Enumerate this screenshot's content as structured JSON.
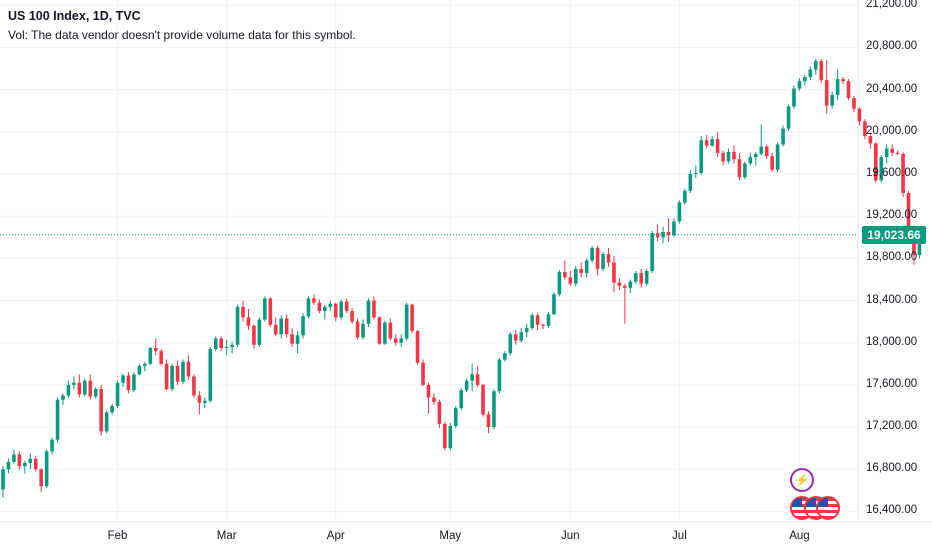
{
  "header": {
    "title": "US 100 Index, 1D, TVC",
    "volume_note": "Vol: The data vendor doesn't provide volume data for this symbol."
  },
  "colors": {
    "up": "#089981",
    "down": "#f23645",
    "grid": "#f0f3fa",
    "last_price": "#089981"
  },
  "icons": [
    "lightning-icon",
    "us-flag-icon"
  ],
  "chart_data": {
    "type": "candlestick",
    "symbol": "US 100 Index",
    "interval": "1D",
    "source": "TVC",
    "last_price": "19,023.66",
    "last_price_value": 19023.66,
    "ylim": [
      16300,
      21250
    ],
    "y_ticks": [
      {
        "value": 16400,
        "label": "16,400.00"
      },
      {
        "value": 16800,
        "label": "16,800.00"
      },
      {
        "value": 17200,
        "label": "17,200.00"
      },
      {
        "value": 17600,
        "label": "17,600.00"
      },
      {
        "value": 18000,
        "label": "18,000.00"
      },
      {
        "value": 18400,
        "label": "18,400.00"
      },
      {
        "value": 18800,
        "label": "18,800.00"
      },
      {
        "value": 19200,
        "label": "19,200.00"
      },
      {
        "value": 19600,
        "label": "19,600.00"
      },
      {
        "value": 20000,
        "label": "20,000.00"
      },
      {
        "value": 20400,
        "label": "20,400.00"
      },
      {
        "value": 20800,
        "label": "20,800.00"
      },
      {
        "value": 21200,
        "label": "21,200.00"
      }
    ],
    "x_ticks": [
      {
        "label": "Feb",
        "index": 21
      },
      {
        "label": "Mar",
        "index": 41
      },
      {
        "label": "Apr",
        "index": 61
      },
      {
        "label": "May",
        "index": 82
      },
      {
        "label": "Jun",
        "index": 104
      },
      {
        "label": "Jul",
        "index": 124
      },
      {
        "label": "Aug",
        "index": 146
      }
    ],
    "grid": true,
    "candles": [
      [
        16610,
        16830,
        16530,
        16800
      ],
      [
        16800,
        16900,
        16760,
        16870
      ],
      [
        16870,
        16990,
        16850,
        16940
      ],
      [
        16940,
        16970,
        16800,
        16830
      ],
      [
        16830,
        16880,
        16760,
        16860
      ],
      [
        16860,
        16950,
        16800,
        16900
      ],
      [
        16900,
        16930,
        16780,
        16800
      ],
      [
        16800,
        16810,
        16580,
        16640
      ],
      [
        16640,
        16990,
        16620,
        16970
      ],
      [
        16970,
        17100,
        16940,
        17080
      ],
      [
        17080,
        17480,
        17050,
        17460
      ],
      [
        17460,
        17520,
        17410,
        17500
      ],
      [
        17500,
        17640,
        17480,
        17600
      ],
      [
        17600,
        17680,
        17560,
        17620
      ],
      [
        17620,
        17700,
        17480,
        17510
      ],
      [
        17510,
        17660,
        17490,
        17640
      ],
      [
        17640,
        17700,
        17460,
        17490
      ],
      [
        17490,
        17580,
        17470,
        17560
      ],
      [
        17560,
        17600,
        17120,
        17160
      ],
      [
        17160,
        17360,
        17140,
        17340
      ],
      [
        17340,
        17420,
        17320,
        17400
      ],
      [
        17400,
        17640,
        17380,
        17620
      ],
      [
        17620,
        17710,
        17580,
        17690
      ],
      [
        17690,
        17720,
        17520,
        17550
      ],
      [
        17550,
        17720,
        17530,
        17700
      ],
      [
        17700,
        17800,
        17690,
        17780
      ],
      [
        17780,
        17820,
        17730,
        17800
      ],
      [
        17800,
        17960,
        17790,
        17950
      ],
      [
        17950,
        18040,
        17880,
        17920
      ],
      [
        17920,
        17940,
        17780,
        17800
      ],
      [
        17800,
        17840,
        17550,
        17560
      ],
      [
        17560,
        17800,
        17540,
        17780
      ],
      [
        17780,
        17830,
        17600,
        17630
      ],
      [
        17630,
        17840,
        17610,
        17820
      ],
      [
        17820,
        17880,
        17650,
        17680
      ],
      [
        17680,
        17700,
        17480,
        17500
      ],
      [
        17500,
        17540,
        17320,
        17430
      ],
      [
        17430,
        17480,
        17380,
        17450
      ],
      [
        17450,
        17960,
        17430,
        17940
      ],
      [
        17940,
        18060,
        17920,
        18040
      ],
      [
        18040,
        18060,
        17920,
        17950
      ],
      [
        17950,
        18030,
        17880,
        17960
      ],
      [
        17960,
        18010,
        17900,
        17980
      ],
      [
        17980,
        18360,
        17960,
        18340
      ],
      [
        18340,
        18400,
        18200,
        18240
      ],
      [
        18240,
        18320,
        18120,
        18160
      ],
      [
        18160,
        18170,
        17940,
        17980
      ],
      [
        17980,
        18240,
        17960,
        18220
      ],
      [
        18220,
        18440,
        18200,
        18420
      ],
      [
        18420,
        18430,
        18150,
        18170
      ],
      [
        18170,
        18240,
        18060,
        18080
      ],
      [
        18080,
        18260,
        18040,
        18230
      ],
      [
        18230,
        18270,
        18050,
        18080
      ],
      [
        18080,
        18140,
        17960,
        17990
      ],
      [
        17990,
        18110,
        17900,
        18070
      ],
      [
        18070,
        18280,
        18040,
        18250
      ],
      [
        18250,
        18440,
        18230,
        18420
      ],
      [
        18420,
        18460,
        18360,
        18380
      ],
      [
        18380,
        18410,
        18280,
        18300
      ],
      [
        18300,
        18360,
        18220,
        18340
      ],
      [
        18340,
        18400,
        18300,
        18370
      ],
      [
        18370,
        18380,
        18200,
        18240
      ],
      [
        18240,
        18410,
        18220,
        18390
      ],
      [
        18390,
        18420,
        18280,
        18300
      ],
      [
        18300,
        18330,
        18180,
        18200
      ],
      [
        18200,
        18230,
        18030,
        18050
      ],
      [
        18050,
        18220,
        18030,
        18180
      ],
      [
        18180,
        18420,
        18150,
        18400
      ],
      [
        18400,
        18440,
        18220,
        18240
      ],
      [
        18240,
        18250,
        17980,
        17990
      ],
      [
        17990,
        18210,
        17980,
        18190
      ],
      [
        18190,
        18230,
        18020,
        18040
      ],
      [
        18040,
        18080,
        17970,
        18000
      ],
      [
        18000,
        18080,
        17960,
        18040
      ],
      [
        18040,
        18380,
        18020,
        18360
      ],
      [
        18360,
        18370,
        18090,
        18110
      ],
      [
        18110,
        18120,
        17790,
        17810
      ],
      [
        17810,
        17840,
        17590,
        17600
      ],
      [
        17600,
        17620,
        17330,
        17480
      ],
      [
        17480,
        17520,
        17410,
        17440
      ],
      [
        17440,
        17460,
        17190,
        17230
      ],
      [
        17230,
        17250,
        16980,
        17000
      ],
      [
        17000,
        17240,
        16980,
        17210
      ],
      [
        17210,
        17400,
        17190,
        17380
      ],
      [
        17380,
        17570,
        17360,
        17550
      ],
      [
        17550,
        17660,
        17530,
        17640
      ],
      [
        17640,
        17800,
        17540,
        17700
      ],
      [
        17700,
        17780,
        17580,
        17600
      ],
      [
        17600,
        17610,
        17300,
        17320
      ],
      [
        17320,
        17350,
        17140,
        17200
      ],
      [
        17200,
        17560,
        17180,
        17540
      ],
      [
        17540,
        17860,
        17520,
        17840
      ],
      [
        17840,
        17920,
        17820,
        17900
      ],
      [
        17900,
        18100,
        17880,
        18080
      ],
      [
        18080,
        18120,
        17980,
        18020
      ],
      [
        18020,
        18140,
        18000,
        18100
      ],
      [
        18100,
        18180,
        18050,
        18140
      ],
      [
        18140,
        18280,
        18120,
        18260
      ],
      [
        18260,
        18280,
        18120,
        18170
      ],
      [
        18170,
        18180,
        18130,
        18160
      ],
      [
        18160,
        18290,
        18140,
        18270
      ],
      [
        18270,
        18480,
        18260,
        18460
      ],
      [
        18460,
        18690,
        18440,
        18670
      ],
      [
        18670,
        18780,
        18600,
        18620
      ],
      [
        18620,
        18680,
        18540,
        18560
      ],
      [
        18560,
        18730,
        18530,
        18700
      ],
      [
        18700,
        18760,
        18620,
        18660
      ],
      [
        18660,
        18800,
        18620,
        18780
      ],
      [
        18780,
        18920,
        18760,
        18900
      ],
      [
        18900,
        18920,
        18640,
        18700
      ],
      [
        18700,
        18860,
        18680,
        18840
      ],
      [
        18840,
        18900,
        18720,
        18760
      ],
      [
        18760,
        18820,
        18480,
        18570
      ],
      [
        18570,
        18610,
        18500,
        18540
      ],
      [
        18540,
        18560,
        18180,
        18520
      ],
      [
        18520,
        18600,
        18470,
        18580
      ],
      [
        18580,
        18680,
        18560,
        18660
      ],
      [
        18660,
        18700,
        18520,
        18560
      ],
      [
        18560,
        18700,
        18540,
        18680
      ],
      [
        18680,
        19060,
        18660,
        19040
      ],
      [
        19040,
        19120,
        18960,
        19000
      ],
      [
        19000,
        19100,
        18940,
        19050
      ],
      [
        19050,
        19180,
        18960,
        19020
      ],
      [
        19020,
        19180,
        19000,
        19150
      ],
      [
        19150,
        19350,
        19130,
        19330
      ],
      [
        19330,
        19460,
        19310,
        19440
      ],
      [
        19440,
        19640,
        19420,
        19600
      ],
      [
        19600,
        19680,
        19560,
        19610
      ],
      [
        19610,
        19960,
        19590,
        19920
      ],
      [
        19920,
        19970,
        19840,
        19870
      ],
      [
        19870,
        19960,
        19860,
        19930
      ],
      [
        19930,
        20000,
        19760,
        19800
      ],
      [
        19800,
        19820,
        19680,
        19720
      ],
      [
        19720,
        19840,
        19700,
        19810
      ],
      [
        19810,
        19870,
        19700,
        19740
      ],
      [
        19740,
        19800,
        19540,
        19570
      ],
      [
        19570,
        19720,
        19550,
        19700
      ],
      [
        19700,
        19800,
        19680,
        19760
      ],
      [
        19760,
        19810,
        19680,
        19790
      ],
      [
        19790,
        20070,
        19780,
        19860
      ],
      [
        19860,
        19880,
        19740,
        19770
      ],
      [
        19770,
        19800,
        19620,
        19640
      ],
      [
        19640,
        19900,
        19620,
        19880
      ],
      [
        19880,
        20060,
        19860,
        20030
      ],
      [
        20030,
        20260,
        20010,
        20240
      ],
      [
        20240,
        20440,
        20220,
        20410
      ],
      [
        20410,
        20510,
        20390,
        20480
      ],
      [
        20480,
        20540,
        20440,
        20520
      ],
      [
        20520,
        20620,
        20490,
        20590
      ],
      [
        20590,
        20690,
        20540,
        20670
      ],
      [
        20670,
        20690,
        20460,
        20490
      ],
      [
        20490,
        20680,
        20170,
        20250
      ],
      [
        20250,
        20380,
        20220,
        20350
      ],
      [
        20350,
        20590,
        20300,
        20500
      ],
      [
        20500,
        20520,
        20450,
        20480
      ],
      [
        20480,
        20500,
        20300,
        20320
      ],
      [
        20320,
        20340,
        20190,
        20220
      ],
      [
        20220,
        20230,
        20060,
        20100
      ],
      [
        20100,
        20120,
        19930,
        19960
      ],
      [
        19960,
        19990,
        19840,
        19890
      ],
      [
        19890,
        19900,
        19520,
        19540
      ],
      [
        19540,
        19780,
        19520,
        19760
      ],
      [
        19760,
        19880,
        19700,
        19840
      ],
      [
        19840,
        19880,
        19770,
        19800
      ],
      [
        19800,
        19820,
        19780,
        19790
      ],
      [
        19790,
        19810,
        19380,
        19420
      ],
      [
        19420,
        19440,
        19080,
        19100
      ],
      [
        19100,
        19110,
        18740,
        18830
      ],
      [
        18830,
        19060,
        18800,
        19020
      ]
    ]
  },
  "axis": {
    "y_labels": [
      "21,200.00",
      "20,800.00",
      "20,400.00",
      "20,000.00",
      "19,600.00",
      "19,200.00",
      "18,800.00",
      "18,400.00",
      "18,000.00",
      "17,600.00",
      "17,200.00",
      "16,800.00",
      "16,400.00"
    ],
    "x_labels": [
      "Feb",
      "Mar",
      "Apr",
      "May",
      "Jun",
      "Jul",
      "Aug"
    ]
  }
}
